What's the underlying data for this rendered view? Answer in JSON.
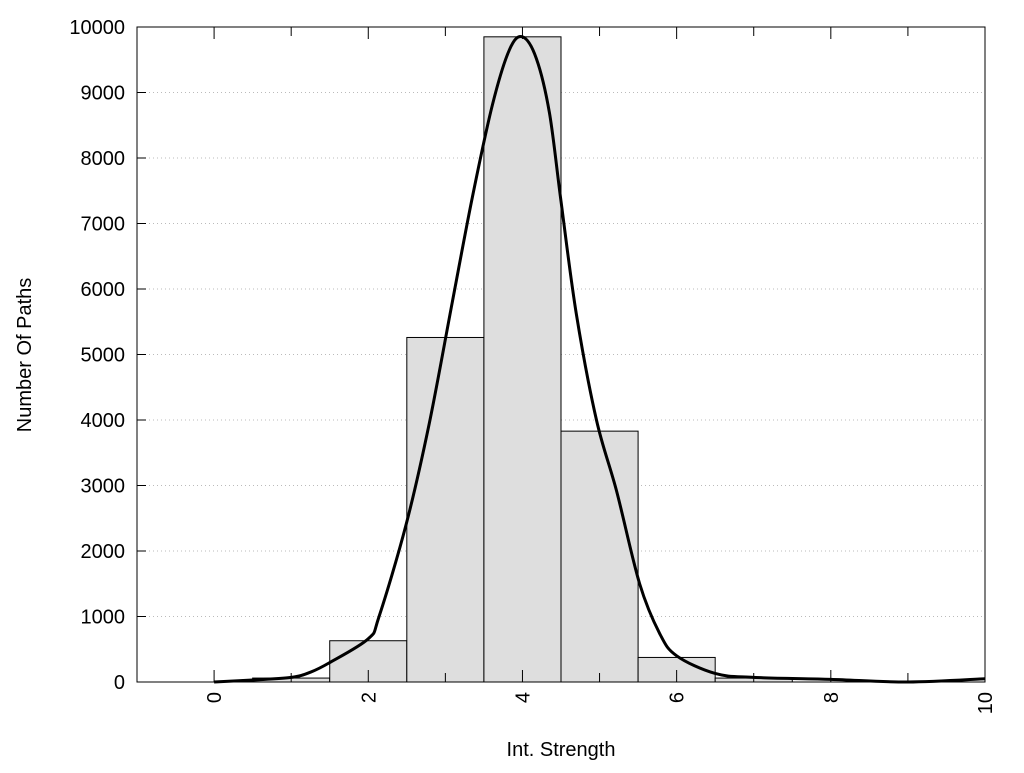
{
  "chart_data": {
    "type": "bar",
    "title": "",
    "xlabel": "Int. Strength",
    "ylabel": "Number Of Paths",
    "xlim": [
      -1,
      10
    ],
    "ylim": [
      0,
      10000
    ],
    "grid": "horizontal dotted",
    "x_ticks": [
      "0",
      "2",
      "4",
      "6",
      "8",
      "10"
    ],
    "y_ticks": [
      "0",
      "1000",
      "2000",
      "3000",
      "4000",
      "5000",
      "6000",
      "7000",
      "8000",
      "9000",
      "10000"
    ],
    "bars": {
      "bin_width": 1,
      "centers": [
        1,
        2,
        3,
        4,
        5,
        6,
        7
      ],
      "values": [
        60,
        630,
        5260,
        9850,
        3830,
        375,
        60
      ],
      "color": "#dedede"
    },
    "curve": {
      "color": "#000000",
      "x": [
        0,
        0.5,
        1.0,
        1.25,
        1.49,
        2.0,
        2.14,
        2.49,
        2.79,
        3.09,
        3.35,
        3.61,
        3.83,
        4.0,
        4.18,
        4.35,
        4.5,
        4.7,
        4.96,
        5.22,
        5.52,
        5.78,
        6.0,
        6.5,
        7.0,
        8.0,
        9.0,
        10.0
      ],
      "y": [
        0,
        30,
        70,
        150,
        290,
        660,
        1000,
        2400,
        3940,
        5800,
        7400,
        8810,
        9650,
        9850,
        9520,
        8690,
        7340,
        5610,
        4000,
        2920,
        1500,
        740,
        400,
        130,
        70,
        40,
        0,
        50
      ]
    }
  }
}
